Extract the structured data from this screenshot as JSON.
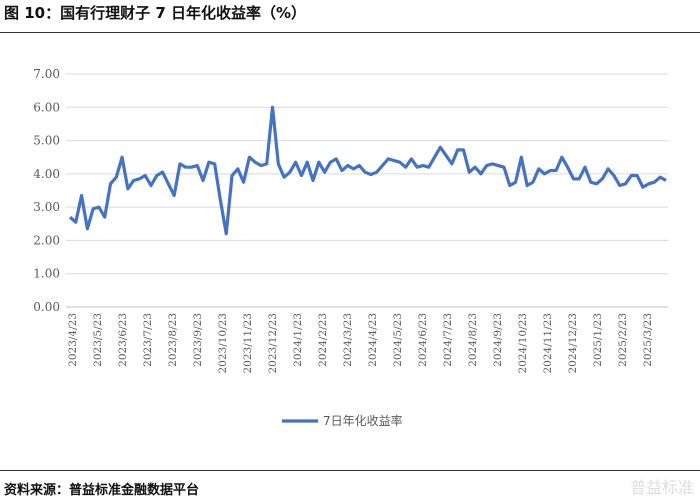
{
  "title": "图 10：国有行理财子 7 日年化收益率（%）",
  "source": "资料来源：普益标准金融数据平台",
  "watermark": "普益标准",
  "chart_data": {
    "type": "line",
    "title": "",
    "xlabel": "",
    "ylabel": "",
    "ylim": [
      0,
      7
    ],
    "yticks": [
      "0.00",
      "1.00",
      "2.00",
      "3.00",
      "4.00",
      "5.00",
      "6.00",
      "7.00"
    ],
    "xticks": [
      "2023/4/23",
      "2023/5/23",
      "2023/6/23",
      "2023/7/23",
      "2023/8/23",
      "2023/9/23",
      "2023/10/23",
      "2023/11/23",
      "2023/12/23",
      "2024/1/23",
      "2024/2/23",
      "2024/3/23",
      "2024/4/23",
      "2024/5/23",
      "2024/6/23",
      "2024/7/23",
      "2024/8/23",
      "2024/9/23",
      "2024/10/23",
      "2024/11/23",
      "2024/12/23",
      "2025/1/23",
      "2025/2/23",
      "2025/3/23"
    ],
    "grid": true,
    "legend": "bottom",
    "color": "#4472C4",
    "series": [
      {
        "name": "7日年化收益率",
        "values": [
          2.7,
          2.55,
          3.35,
          2.35,
          2.95,
          3.0,
          2.7,
          3.7,
          3.9,
          4.5,
          3.55,
          3.8,
          3.85,
          3.95,
          3.65,
          3.95,
          4.05,
          3.7,
          3.35,
          4.3,
          4.2,
          4.2,
          4.25,
          3.8,
          4.35,
          4.3,
          3.2,
          2.2,
          3.95,
          4.15,
          3.75,
          4.5,
          4.35,
          4.25,
          4.3,
          6.0,
          4.3,
          3.9,
          4.05,
          4.35,
          3.95,
          4.35,
          3.8,
          4.35,
          4.05,
          4.35,
          4.45,
          4.1,
          4.25,
          4.15,
          4.25,
          4.05,
          3.98,
          4.05,
          4.25,
          4.45,
          4.4,
          4.35,
          4.2,
          4.45,
          4.2,
          4.25,
          4.2,
          4.5,
          4.8,
          4.55,
          4.3,
          4.72,
          4.72,
          4.05,
          4.2,
          4.0,
          4.25,
          4.3,
          4.25,
          4.2,
          3.65,
          3.75,
          4.5,
          3.65,
          3.75,
          4.15,
          4.0,
          4.1,
          4.1,
          4.5,
          4.2,
          3.85,
          3.85,
          4.2,
          3.75,
          3.7,
          3.85,
          4.15,
          3.95,
          3.65,
          3.7,
          3.95,
          3.95,
          3.6,
          3.7,
          3.75,
          3.9,
          3.8
        ]
      }
    ]
  }
}
